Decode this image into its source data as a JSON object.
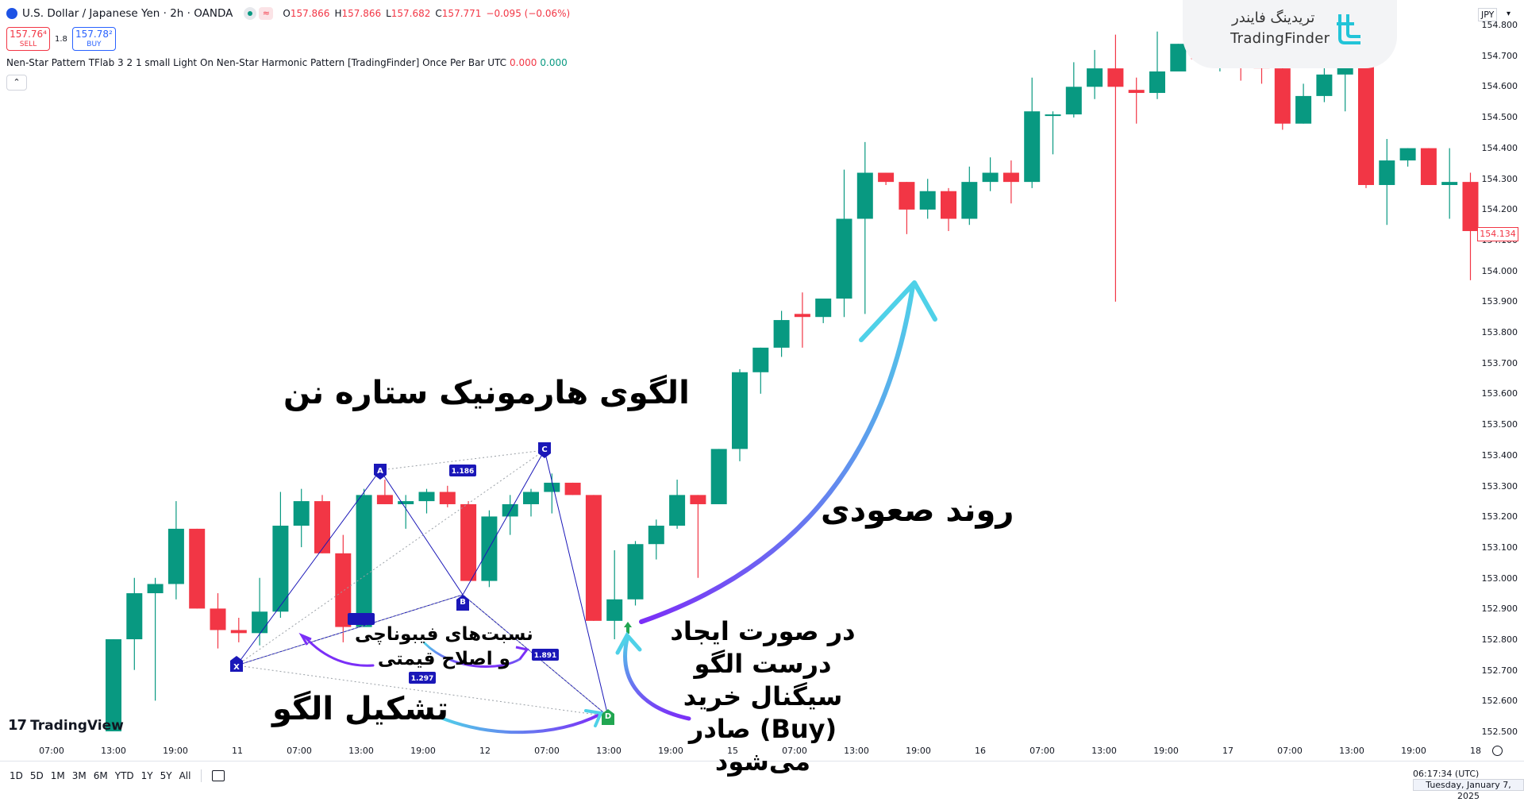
{
  "header": {
    "symbol_title": "U.S. Dollar / Japanese Yen · 2h · OANDA",
    "pill_icon": "≈",
    "ohlc": [
      {
        "k": "O",
        "v": "157.866"
      },
      {
        "k": "H",
        "v": "157.866"
      },
      {
        "k": "L",
        "v": "157.682"
      },
      {
        "k": "C",
        "v": "157.771"
      }
    ],
    "change": "−0.095 (−0.06%)",
    "sell_price": "157.76⁴",
    "sell_label": "SELL",
    "spread": "1.8",
    "buy_price": "157.78²",
    "buy_label": "BUY",
    "indicator_text": "Nen-Star Pattern TFlab 3 2 1 small Light On Nen-Star Harmonic Pattern [TradingFinder] Once Per Bar UTC",
    "indicator_v1": "0.000",
    "indicator_v2": "0.000",
    "collapse_icon": "⌃"
  },
  "brand": {
    "name_fa": "تریدینگ فایندر",
    "name_en": "TradingFinder"
  },
  "price_scale": {
    "currency": "JPY",
    "dropdown_icon": "▾",
    "ticks": [
      "154.800",
      "154.700",
      "154.600",
      "154.500",
      "154.400",
      "154.300",
      "154.200",
      "154.100",
      "154.000",
      "153.900",
      "153.800",
      "153.700",
      "153.600",
      "153.500",
      "153.400",
      "153.300",
      "153.200",
      "153.100",
      "153.000",
      "152.900",
      "152.800",
      "152.700",
      "152.600",
      "152.500"
    ],
    "last_price": "154.134"
  },
  "time_axis": {
    "ticks": [
      "07:00",
      "13:00",
      "19:00",
      "11",
      "07:00",
      "13:00",
      "19:00",
      "12",
      "07:00",
      "13:00",
      "19:00",
      "15",
      "07:00",
      "13:00",
      "19:00",
      "16",
      "07:00",
      "13:00",
      "19:00",
      "17",
      "07:00",
      "13:00",
      "19:00",
      "18"
    ]
  },
  "range_bar": [
    "1D",
    "5D",
    "1M",
    "3M",
    "6M",
    "YTD",
    "1Y",
    "5Y",
    "All"
  ],
  "clock": "06:17:34 (UTC)",
  "date": "Tuesday, January 7, 2025",
  "tv_logo": {
    "mark": "17",
    "text": "TradingView"
  },
  "annotations": {
    "title": "الگوی هارمونیک ستاره نن",
    "uptrend": "روند صعودی",
    "formation": "تشکیل الگو",
    "fib_line1": "نسبت‌های فیبوناچی",
    "fib_line2": "و اصلاح قیمتی",
    "signal": "در صورت ایجاد درست الگو سیگنال خرید (Buy) صادر می‌شود"
  },
  "pattern": {
    "points": [
      "X",
      "A",
      "B",
      "C",
      "D"
    ],
    "ratios": [
      "1.186",
      "1.297",
      "1.891"
    ],
    "colors": {
      "pattern": "#1a17b8",
      "signal": "#21a651"
    }
  },
  "colors": {
    "up": "#089981",
    "down": "#f23645",
    "accent": "#2962ff"
  },
  "chart_data": {
    "type": "candlestick",
    "ylim": [
      152.45,
      154.85
    ],
    "candles": [
      {
        "o": 152.5,
        "h": 152.8,
        "l": 152.5,
        "c": 152.8
      },
      {
        "o": 152.8,
        "h": 153.0,
        "l": 152.7,
        "c": 152.95
      },
      {
        "o": 152.95,
        "h": 153.0,
        "l": 152.6,
        "c": 152.98
      },
      {
        "o": 152.98,
        "h": 153.25,
        "l": 152.93,
        "c": 153.16
      },
      {
        "o": 153.16,
        "h": 153.16,
        "l": 152.9,
        "c": 152.9
      },
      {
        "o": 152.9,
        "h": 152.95,
        "l": 152.77,
        "c": 152.83
      },
      {
        "o": 152.83,
        "h": 152.87,
        "l": 152.79,
        "c": 152.82
      },
      {
        "o": 152.82,
        "h": 153.0,
        "l": 152.78,
        "c": 152.89
      },
      {
        "o": 152.89,
        "h": 153.28,
        "l": 152.87,
        "c": 153.17
      },
      {
        "o": 153.17,
        "h": 153.29,
        "l": 153.1,
        "c": 153.25
      },
      {
        "o": 153.25,
        "h": 153.27,
        "l": 153.08,
        "c": 153.08
      },
      {
        "o": 153.08,
        "h": 153.14,
        "l": 152.79,
        "c": 152.84
      },
      {
        "o": 152.84,
        "h": 153.29,
        "l": 152.84,
        "c": 153.27
      },
      {
        "o": 153.27,
        "h": 153.32,
        "l": 153.24,
        "c": 153.24
      },
      {
        "o": 153.24,
        "h": 153.27,
        "l": 153.16,
        "c": 153.25
      },
      {
        "o": 153.25,
        "h": 153.29,
        "l": 153.21,
        "c": 153.28
      },
      {
        "o": 153.28,
        "h": 153.3,
        "l": 153.23,
        "c": 153.24
      },
      {
        "o": 153.24,
        "h": 153.25,
        "l": 152.99,
        "c": 152.99
      },
      {
        "o": 152.99,
        "h": 153.22,
        "l": 152.97,
        "c": 153.2
      },
      {
        "o": 153.2,
        "h": 153.27,
        "l": 153.14,
        "c": 153.24
      },
      {
        "o": 153.24,
        "h": 153.29,
        "l": 153.2,
        "c": 153.28
      },
      {
        "o": 153.28,
        "h": 153.34,
        "l": 153.21,
        "c": 153.31
      },
      {
        "o": 153.31,
        "h": 153.31,
        "l": 153.27,
        "c": 153.27
      },
      {
        "o": 153.27,
        "h": 153.27,
        "l": 152.86,
        "c": 152.86
      },
      {
        "o": 152.86,
        "h": 153.09,
        "l": 152.8,
        "c": 152.93
      },
      {
        "o": 152.93,
        "h": 153.12,
        "l": 152.91,
        "c": 153.11
      },
      {
        "o": 153.11,
        "h": 153.19,
        "l": 153.06,
        "c": 153.17
      },
      {
        "o": 153.17,
        "h": 153.32,
        "l": 153.16,
        "c": 153.27
      },
      {
        "o": 153.27,
        "h": 153.27,
        "l": 153.0,
        "c": 153.24
      },
      {
        "o": 153.24,
        "h": 153.42,
        "l": 153.24,
        "c": 153.42
      },
      {
        "o": 153.42,
        "h": 153.68,
        "l": 153.38,
        "c": 153.67
      },
      {
        "o": 153.67,
        "h": 153.75,
        "l": 153.6,
        "c": 153.75
      },
      {
        "o": 153.75,
        "h": 153.87,
        "l": 153.72,
        "c": 153.84
      },
      {
        "o": 153.86,
        "h": 153.93,
        "l": 153.75,
        "c": 153.85
      },
      {
        "o": 153.85,
        "h": 153.91,
        "l": 153.83,
        "c": 153.91
      },
      {
        "o": 153.91,
        "h": 154.33,
        "l": 153.85,
        "c": 154.17
      },
      {
        "o": 154.17,
        "h": 154.42,
        "l": 153.86,
        "c": 154.32
      },
      {
        "o": 154.32,
        "h": 154.32,
        "l": 154.28,
        "c": 154.29
      },
      {
        "o": 154.29,
        "h": 154.29,
        "l": 154.12,
        "c": 154.2
      },
      {
        "o": 154.2,
        "h": 154.3,
        "l": 154.17,
        "c": 154.26
      },
      {
        "o": 154.26,
        "h": 154.27,
        "l": 154.13,
        "c": 154.17
      },
      {
        "o": 154.17,
        "h": 154.34,
        "l": 154.15,
        "c": 154.29
      },
      {
        "o": 154.29,
        "h": 154.37,
        "l": 154.26,
        "c": 154.32
      },
      {
        "o": 154.32,
        "h": 154.36,
        "l": 154.22,
        "c": 154.29
      },
      {
        "o": 154.29,
        "h": 154.63,
        "l": 154.27,
        "c": 154.52
      },
      {
        "o": 154.51,
        "h": 154.52,
        "l": 154.38,
        "c": 154.51
      },
      {
        "o": 154.51,
        "h": 154.68,
        "l": 154.5,
        "c": 154.6
      },
      {
        "o": 154.6,
        "h": 154.72,
        "l": 154.56,
        "c": 154.66
      },
      {
        "o": 154.66,
        "h": 154.77,
        "l": 153.9,
        "c": 154.6
      },
      {
        "o": 154.59,
        "h": 154.63,
        "l": 154.48,
        "c": 154.58
      },
      {
        "o": 154.58,
        "h": 154.78,
        "l": 154.56,
        "c": 154.65
      },
      {
        "o": 154.65,
        "h": 154.74,
        "l": 154.67,
        "c": 154.74
      },
      {
        "o": 154.74,
        "h": 154.74,
        "l": 154.69,
        "c": 154.69
      },
      {
        "o": 154.69,
        "h": 154.72,
        "l": 154.65,
        "c": 154.7
      },
      {
        "o": 154.7,
        "h": 154.77,
        "l": 154.62,
        "c": 154.69
      },
      {
        "o": 154.69,
        "h": 154.7,
        "l": 154.61,
        "c": 154.66
      },
      {
        "o": 154.66,
        "h": 154.68,
        "l": 154.46,
        "c": 154.48
      },
      {
        "o": 154.48,
        "h": 154.61,
        "l": 154.48,
        "c": 154.57
      },
      {
        "o": 154.57,
        "h": 154.67,
        "l": 154.55,
        "c": 154.64
      },
      {
        "o": 154.64,
        "h": 154.72,
        "l": 154.52,
        "c": 154.67
      },
      {
        "o": 154.67,
        "h": 154.73,
        "l": 154.27,
        "c": 154.28
      },
      {
        "o": 154.28,
        "h": 154.43,
        "l": 154.15,
        "c": 154.36
      },
      {
        "o": 154.36,
        "h": 154.4,
        "l": 154.34,
        "c": 154.4
      },
      {
        "o": 154.4,
        "h": 154.4,
        "l": 154.28,
        "c": 154.28
      },
      {
        "o": 154.28,
        "h": 154.4,
        "l": 154.17,
        "c": 154.29
      },
      {
        "o": 154.29,
        "h": 154.32,
        "l": 153.97,
        "c": 154.13
      }
    ]
  }
}
